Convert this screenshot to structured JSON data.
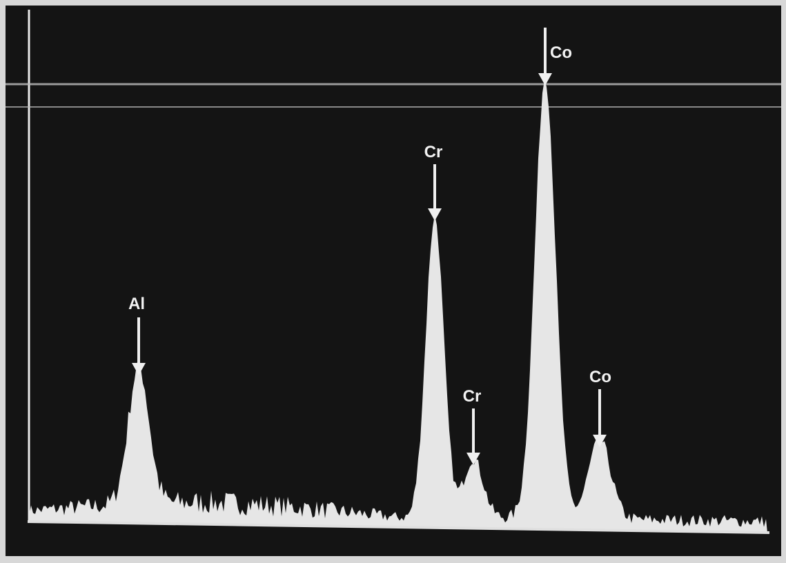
{
  "peaks": [
    {
      "label": "Al"
    },
    {
      "label": "Cr"
    },
    {
      "label": "Cr"
    },
    {
      "label": "Co"
    },
    {
      "label": "Co"
    }
  ]
}
